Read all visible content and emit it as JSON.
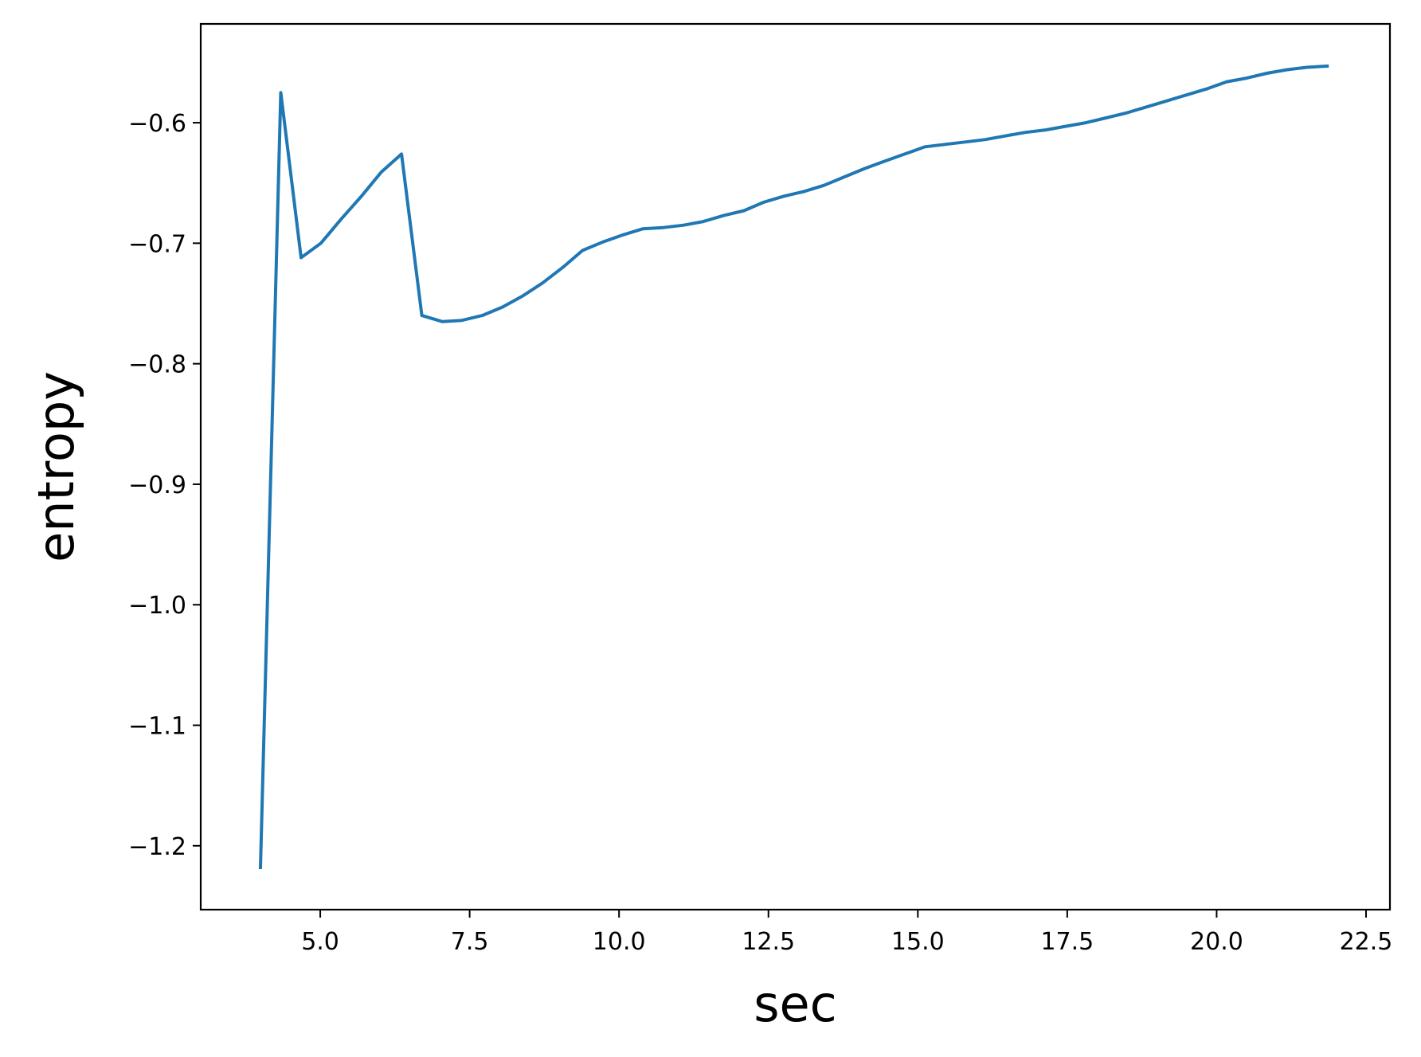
{
  "chart_data": {
    "type": "line",
    "title": "",
    "xlabel": "sec",
    "ylabel": "entropy",
    "xlim": [
      3.0,
      22.9
    ],
    "ylim": [
      -1.253,
      -0.518
    ],
    "xticks": [
      5.0,
      7.5,
      10.0,
      12.5,
      15.0,
      17.5,
      20.0,
      22.5
    ],
    "xtick_labels": [
      "5.0",
      "7.5",
      "10.0",
      "12.5",
      "15.0",
      "17.5",
      "20.0",
      "22.5"
    ],
    "yticks": [
      -0.6,
      -0.7,
      -0.8,
      -0.9,
      -1.0,
      -1.1,
      -1.2
    ],
    "ytick_labels": [
      "−0.6",
      "−0.7",
      "−0.8",
      "−0.9",
      "−1.0",
      "−1.1",
      "−1.2"
    ],
    "grid": false,
    "legend": false,
    "color": "#1f77b4",
    "series": [
      {
        "x": [
          4.0,
          4.34,
          4.68,
          5.01,
          5.35,
          5.69,
          6.02,
          6.36,
          6.7,
          7.04,
          7.37,
          7.71,
          8.05,
          8.38,
          8.72,
          9.06,
          9.39,
          9.73,
          10.07,
          10.4,
          10.74,
          11.08,
          11.41,
          11.75,
          12.09,
          12.42,
          12.76,
          13.1,
          13.43,
          13.77,
          14.11,
          14.44,
          14.78,
          15.12,
          15.45,
          15.79,
          16.13,
          16.46,
          16.8,
          17.14,
          17.47,
          17.81,
          18.15,
          18.48,
          18.82,
          19.16,
          19.49,
          19.83,
          20.17,
          20.5,
          20.84,
          21.18,
          21.51,
          21.85
        ],
        "y": [
          -1.218,
          -0.575,
          -0.712,
          -0.7,
          -0.68,
          -0.661,
          -0.641,
          -0.626,
          -0.76,
          -0.765,
          -0.764,
          -0.76,
          -0.753,
          -0.744,
          -0.733,
          -0.72,
          -0.706,
          -0.699,
          -0.693,
          -0.688,
          -0.687,
          -0.685,
          -0.682,
          -0.677,
          -0.673,
          -0.666,
          -0.661,
          -0.657,
          -0.652,
          -0.645,
          -0.638,
          -0.632,
          -0.626,
          -0.62,
          -0.618,
          -0.616,
          -0.614,
          -0.611,
          -0.608,
          -0.606,
          -0.603,
          -0.6,
          -0.596,
          -0.592,
          -0.587,
          -0.582,
          -0.577,
          -0.572,
          -0.566,
          -0.563,
          -0.559,
          -0.556,
          -0.554,
          -0.553
        ]
      }
    ]
  }
}
